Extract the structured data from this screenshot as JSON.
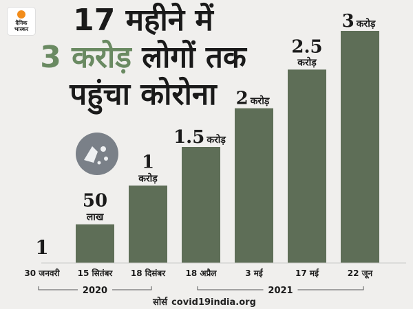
{
  "brand": {
    "line1": "दैनिक",
    "line2": "भास्कर",
    "accent": "#f28c1a"
  },
  "headline": {
    "line1": "17 महीने में",
    "line2_accent": "3 करोड़",
    "line2_rest": "लोगों तक",
    "line3": "पहुंचा कोरोना"
  },
  "source": {
    "label": "सोर्स",
    "value": "covid19india.org"
  },
  "colors": {
    "bar": "#5e6e57",
    "accent": "#6a8a62",
    "background": "#f0efed"
  },
  "chart_data": {
    "type": "bar",
    "categories": [
      "30 जनवरी",
      "15 सितंबर",
      "18 दिसंबर",
      "18 अप्रैल",
      "3 मई",
      "17 मई",
      "22 जून"
    ],
    "values": [
      1e-07,
      0.5,
      1,
      1.5,
      2,
      2.5,
      3
    ],
    "unit": "करोड़",
    "value_labels": [
      {
        "num": "1",
        "unit": ""
      },
      {
        "num": "50",
        "unit": "लाख"
      },
      {
        "num": "1",
        "unit": "करोड़"
      },
      {
        "num": "1.5",
        "unit": "करोड़"
      },
      {
        "num": "2",
        "unit": "करोड़"
      },
      {
        "num": "2.5",
        "unit": "करोड़"
      },
      {
        "num": "3",
        "unit": "करोड़"
      }
    ],
    "year_groups": [
      {
        "label": "2020",
        "from": 0,
        "to": 2
      },
      {
        "label": "2021",
        "from": 3,
        "to": 6
      }
    ],
    "ylim": [
      0,
      3
    ]
  }
}
